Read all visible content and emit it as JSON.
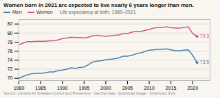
{
  "chart_data": {
    "type": "line",
    "title": "Women born in 2021 are expected to live nearly 6 years longer than men.",
    "subtitle": "Life expectancy at birth, 1980–2021",
    "source": "Source: Centers for Disease Control and Prevention · Get the data · Download image · Download SVG",
    "x": [
      1980,
      1981,
      1982,
      1983,
      1984,
      1985,
      1986,
      1987,
      1988,
      1989,
      1990,
      1991,
      1992,
      1993,
      1994,
      1995,
      1996,
      1997,
      1998,
      1999,
      2000,
      2001,
      2002,
      2003,
      2004,
      2005,
      2006,
      2007,
      2008,
      2009,
      2010,
      2011,
      2012,
      2013,
      2014,
      2015,
      2016,
      2017,
      2018,
      2019,
      2020,
      2021
    ],
    "series": [
      {
        "name": "Men",
        "color": "#4a7fb5",
        "values": [
          70.0,
          70.4,
          70.8,
          71.0,
          71.1,
          71.1,
          71.2,
          71.4,
          71.4,
          71.7,
          71.8,
          72.0,
          72.3,
          72.2,
          72.4,
          72.5,
          73.0,
          73.6,
          73.8,
          73.9,
          74.1,
          74.2,
          74.3,
          74.5,
          74.9,
          74.9,
          75.1,
          75.4,
          75.6,
          75.9,
          76.2,
          76.3,
          76.4,
          76.4,
          76.5,
          76.3,
          76.1,
          76.1,
          76.2,
          76.3,
          75.1,
          73.5
        ]
      },
      {
        "name": "Women",
        "color": "#d4548a",
        "values": [
          77.4,
          77.8,
          78.1,
          78.1,
          78.2,
          78.2,
          78.2,
          78.3,
          78.3,
          78.5,
          78.8,
          78.9,
          79.1,
          79.0,
          79.0,
          78.9,
          79.1,
          79.4,
          79.5,
          79.4,
          79.3,
          79.4,
          79.5,
          79.6,
          79.9,
          79.9,
          80.2,
          80.4,
          80.3,
          80.6,
          80.8,
          81.1,
          81.2,
          81.2,
          81.4,
          81.2,
          81.1,
          81.1,
          81.2,
          81.4,
          79.9,
          79.3
        ]
      }
    ],
    "annotations": [
      {
        "text": "73.5",
        "x": 2021,
        "y": 73.5,
        "series": "Men"
      },
      {
        "text": "79.3",
        "x": 2021,
        "y": 79.3,
        "series": "Women"
      }
    ],
    "xlim": [
      1980,
      2024
    ],
    "xticks": [
      1980,
      1985,
      1990,
      1995,
      2000,
      2005,
      2010,
      2015,
      2020
    ],
    "ylim": [
      69.5,
      83.0
    ],
    "yticks": [
      70,
      72,
      74,
      76,
      78,
      80,
      82
    ],
    "grid": true,
    "legend": "top-left"
  }
}
